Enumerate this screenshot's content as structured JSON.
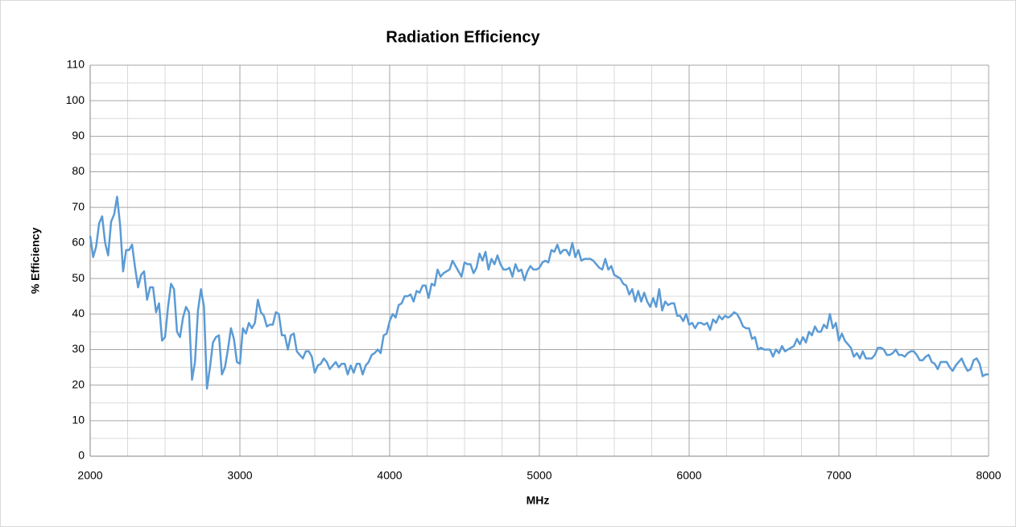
{
  "chart_data": {
    "type": "line",
    "title": "Radiation Efficiency",
    "x_label": "MHz",
    "y_label": "% Efficiency",
    "x": [
      2000,
      2020,
      2040,
      2060,
      2080,
      2100,
      2120,
      2140,
      2160,
      2180,
      2200,
      2220,
      2240,
      2260,
      2280,
      2300,
      2320,
      2340,
      2360,
      2380,
      2400,
      2420,
      2440,
      2460,
      2480,
      2500,
      2520,
      2540,
      2560,
      2580,
      2600,
      2620,
      2640,
      2660,
      2680,
      2700,
      2720,
      2740,
      2760,
      2780,
      2800,
      2820,
      2840,
      2860,
      2880,
      2900,
      2920,
      2940,
      2960,
      2980,
      3000,
      3020,
      3040,
      3060,
      3080,
      3100,
      3120,
      3140,
      3160,
      3180,
      3200,
      3220,
      3240,
      3260,
      3280,
      3300,
      3320,
      3340,
      3360,
      3380,
      3400,
      3420,
      3440,
      3460,
      3480,
      3500,
      3520,
      3540,
      3560,
      3580,
      3600,
      3620,
      3640,
      3660,
      3680,
      3700,
      3720,
      3740,
      3760,
      3780,
      3800,
      3820,
      3840,
      3860,
      3880,
      3900,
      3920,
      3940,
      3960,
      3980,
      4000,
      4020,
      4040,
      4060,
      4080,
      4100,
      4120,
      4140,
      4160,
      4180,
      4200,
      4220,
      4240,
      4260,
      4280,
      4300,
      4320,
      4340,
      4360,
      4380,
      4400,
      4420,
      4440,
      4460,
      4480,
      4500,
      4520,
      4540,
      4560,
      4580,
      4600,
      4620,
      4640,
      4660,
      4680,
      4700,
      4720,
      4740,
      4760,
      4780,
      4800,
      4820,
      4840,
      4860,
      4880,
      4900,
      4920,
      4940,
      4960,
      4980,
      5000,
      5020,
      5040,
      5060,
      5080,
      5100,
      5120,
      5140,
      5160,
      5180,
      5200,
      5220,
      5240,
      5260,
      5280,
      5300,
      5320,
      5340,
      5360,
      5380,
      5400,
      5420,
      5440,
      5460,
      5480,
      5500,
      5520,
      5540,
      5560,
      5580,
      5600,
      5620,
      5640,
      5660,
      5680,
      5700,
      5720,
      5740,
      5760,
      5780,
      5800,
      5820,
      5840,
      5860,
      5880,
      5900,
      5920,
      5940,
      5960,
      5980,
      6000,
      6020,
      6040,
      6060,
      6080,
      6100,
      6120,
      6140,
      6160,
      6180,
      6200,
      6220,
      6240,
      6260,
      6280,
      6300,
      6320,
      6340,
      6360,
      6380,
      6400,
      6420,
      6440,
      6460,
      6480,
      6500,
      6520,
      6540,
      6560,
      6580,
      6600,
      6620,
      6640,
      6660,
      6680,
      6700,
      6720,
      6740,
      6760,
      6780,
      6800,
      6820,
      6840,
      6860,
      6880,
      6900,
      6920,
      6940,
      6960,
      6980,
      7000,
      7020,
      7040,
      7060,
      7080,
      7100,
      7120,
      7140,
      7160,
      7180,
      7200,
      7220,
      7240,
      7260,
      7280,
      7300,
      7320,
      7340,
      7360,
      7380,
      7400,
      7420,
      7440,
      7460,
      7480,
      7500,
      7520,
      7540,
      7560,
      7580,
      7600,
      7620,
      7640,
      7660,
      7680,
      7700,
      7720,
      7740,
      7760,
      7780,
      7800,
      7820,
      7840,
      7860,
      7880,
      7900,
      7920,
      7940,
      7960,
      7980,
      8000
    ],
    "series": [
      {
        "color": "#5b9bd5",
        "values": [
          62,
          56,
          59,
          65.5,
          67.5,
          60,
          56.5,
          66,
          68,
          73,
          65,
          52,
          58,
          58,
          59.5,
          53,
          47.5,
          51,
          52,
          44,
          47.5,
          47.5,
          40.5,
          43,
          32.5,
          33.5,
          42,
          48.5,
          47,
          35,
          33.5,
          39,
          42,
          40.5,
          21.5,
          26.5,
          41,
          47,
          42,
          19,
          25,
          32,
          33.5,
          34,
          23,
          25,
          30,
          36,
          33,
          26.5,
          26,
          36,
          34.5,
          37.5,
          36,
          37.5,
          44,
          40.5,
          39.5,
          36.5,
          37,
          37,
          40.5,
          40,
          34,
          34,
          30,
          34,
          34.5,
          29.5,
          28.5,
          27.5,
          29.5,
          29.5,
          28,
          23.5,
          25.5,
          26,
          27.5,
          26.5,
          24.5,
          25.5,
          26.5,
          25,
          26,
          26,
          23,
          25.5,
          23.5,
          26,
          26,
          23,
          25.5,
          26.5,
          28.5,
          29,
          30,
          29,
          34,
          34.5,
          38,
          40,
          39,
          42.5,
          43,
          45,
          45,
          45.5,
          43.5,
          46.5,
          46,
          48,
          48,
          44.5,
          48.5,
          48,
          52.5,
          50.5,
          51.5,
          52,
          52.5,
          55,
          53.5,
          52,
          50.5,
          54.5,
          54,
          54,
          51.5,
          53,
          57,
          55,
          57.5,
          52.5,
          55.5,
          54,
          56.5,
          54,
          52.5,
          52.5,
          53,
          50.5,
          54,
          52,
          52.5,
          49.5,
          52,
          53.5,
          52.5,
          52.5,
          53,
          54.5,
          55,
          54.5,
          58,
          57.5,
          59.5,
          57,
          58,
          58,
          56.5,
          60,
          56,
          58,
          55,
          55.5,
          55.5,
          55.5,
          55,
          54,
          53,
          52.5,
          55.5,
          52.5,
          53.5,
          51,
          50.5,
          50,
          48.5,
          48,
          45.5,
          47,
          43.5,
          46.5,
          43.5,
          46,
          43.5,
          42,
          44.5,
          42,
          47,
          41,
          43.5,
          42.5,
          43,
          43,
          39.5,
          39.5,
          38,
          40,
          37,
          37.5,
          36,
          37.5,
          37.5,
          37,
          37.5,
          35.5,
          38.5,
          37.5,
          39.5,
          38.5,
          39.5,
          39,
          39.5,
          40.5,
          40,
          38.5,
          36.5,
          36,
          36,
          33,
          33.5,
          30,
          30.5,
          30,
          30,
          30,
          28,
          30,
          29,
          31,
          29.5,
          30,
          30.5,
          31,
          33,
          31.5,
          33.5,
          32,
          35,
          34,
          36.5,
          35,
          35,
          37,
          36,
          40,
          36,
          37.5,
          32.5,
          34.5,
          32.5,
          31.5,
          30.5,
          28,
          29,
          27.5,
          29.5,
          27.5,
          27.5,
          27.5,
          28.5,
          30.5,
          30.5,
          30,
          28.5,
          28.5,
          29,
          30,
          28.5,
          28.5,
          28,
          29,
          29.5,
          29.5,
          28.5,
          27,
          27,
          28,
          28.5,
          26.5,
          26,
          24.5,
          26.5,
          26.5,
          26.5,
          25,
          24,
          25.5,
          26.5,
          27.5,
          25.5,
          24,
          24.5,
          27,
          27.5,
          26,
          22.5,
          23,
          23
        ]
      }
    ],
    "xlim": [
      2000,
      8000
    ],
    "xticks": [
      2000,
      3000,
      4000,
      5000,
      6000,
      7000,
      8000
    ],
    "xminorticks": [
      2250,
      2500,
      2750,
      3250,
      3500,
      3750,
      4250,
      4500,
      4750,
      5250,
      5500,
      5750,
      6250,
      6500,
      6750,
      7250,
      7500,
      7750
    ],
    "ylim": [
      0,
      110
    ],
    "yticks": [
      0,
      10,
      20,
      30,
      40,
      50,
      60,
      70,
      80,
      90,
      100,
      110
    ],
    "yminorticks": [
      5,
      15,
      25,
      35,
      45,
      55,
      65,
      75,
      85,
      95,
      105
    ],
    "grid": true
  }
}
